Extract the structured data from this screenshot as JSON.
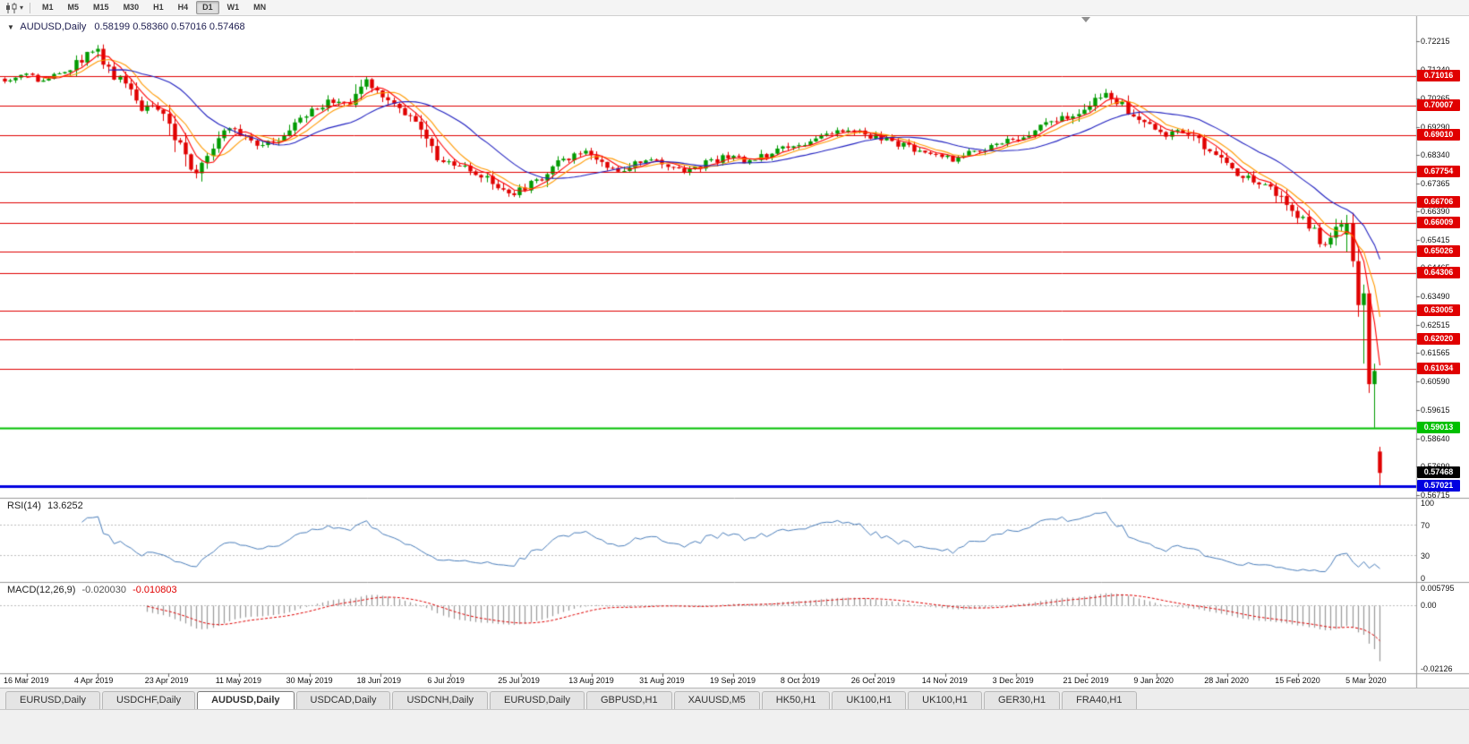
{
  "toolbar": {
    "timeframes": [
      "M1",
      "M5",
      "M15",
      "M30",
      "H1",
      "H4",
      "D1",
      "W1",
      "MN"
    ],
    "active_timeframe": "D1"
  },
  "chart": {
    "title": "AUDUSD,Daily",
    "ohlc": "0.58199 0.58360 0.57016 0.57468",
    "collapse_glyph": "▼"
  },
  "chart_data": {
    "type": "candlestick",
    "symbol": "AUDUSD",
    "period": "Daily",
    "open": "0.58199",
    "high": "0.58360",
    "low": "0.57016",
    "close": "0.57468",
    "current_price": "0.57468",
    "price_max": 0.727,
    "price_min": 0.5665,
    "num_candles": 252,
    "y_ticks": [
      "0.72215",
      "0.71240",
      "0.70265",
      "0.69290",
      "0.68340",
      "0.67365",
      "0.66390",
      "0.65415",
      "0.64465",
      "0.63490",
      "0.62515",
      "0.61565",
      "0.60590",
      "0.59615",
      "0.58640",
      "0.57690",
      "0.56715"
    ],
    "x_dates": [
      "16 Mar 2019",
      "4 Apr 2019",
      "23 Apr 2019",
      "11 May 2019",
      "30 May 2019",
      "18 Jun 2019",
      "6 Jul 2019",
      "25 Jul 2019",
      "13 Aug 2019",
      "31 Aug 2019",
      "19 Sep 2019",
      "8 Oct 2019",
      "26 Oct 2019",
      "14 Nov 2019",
      "3 Dec 2019",
      "21 Dec 2019",
      "9 Jan 2020",
      "28 Jan 2020",
      "15 Feb 2020",
      "5 Mar 2020"
    ],
    "hlines": [
      {
        "value": "0.71016",
        "color": "#e00000",
        "width": 1
      },
      {
        "value": "0.70007",
        "color": "#e00000",
        "width": 1
      },
      {
        "value": "0.69010",
        "color": "#e00000",
        "width": 1
      },
      {
        "value": "0.67754",
        "color": "#e00000",
        "width": 1
      },
      {
        "value": "0.66706",
        "color": "#e00000",
        "width": 1
      },
      {
        "value": "0.66009",
        "color": "#e00000",
        "width": 1
      },
      {
        "value": "0.65026",
        "color": "#e00000",
        "width": 1
      },
      {
        "value": "0.64306",
        "color": "#e00000",
        "width": 1
      },
      {
        "value": "0.63005",
        "color": "#e00000",
        "width": 1
      },
      {
        "value": "0.62020",
        "color": "#e00000",
        "width": 1
      },
      {
        "value": "0.61034",
        "color": "#e00000",
        "width": 1
      },
      {
        "value": "0.59013",
        "color": "#00c000",
        "width": 2
      },
      {
        "value": "0.57021",
        "color": "#0000e0",
        "width": 3
      }
    ],
    "price_path": [
      [
        0.0,
        0.7093
      ],
      [
        0.013,
        0.7105
      ],
      [
        0.028,
        0.7087
      ],
      [
        0.045,
        0.7111
      ],
      [
        0.058,
        0.717
      ],
      [
        0.066,
        0.7191
      ],
      [
        0.075,
        0.7142
      ],
      [
        0.088,
        0.7056
      ],
      [
        0.1,
        0.6995
      ],
      [
        0.108,
        0.7019
      ],
      [
        0.118,
        0.6949
      ],
      [
        0.128,
        0.6842
      ],
      [
        0.136,
        0.6766
      ],
      [
        0.145,
        0.6827
      ],
      [
        0.155,
        0.6903
      ],
      [
        0.163,
        0.6934
      ],
      [
        0.175,
        0.6903
      ],
      [
        0.185,
        0.6857
      ],
      [
        0.195,
        0.6879
      ],
      [
        0.205,
        0.6919
      ],
      [
        0.215,
        0.6949
      ],
      [
        0.228,
        0.6995
      ],
      [
        0.24,
        0.7019
      ],
      [
        0.252,
        0.7001
      ],
      [
        0.262,
        0.7087
      ],
      [
        0.27,
        0.7056
      ],
      [
        0.28,
        0.7019
      ],
      [
        0.292,
        0.698
      ],
      [
        0.305,
        0.6903
      ],
      [
        0.315,
        0.6827
      ],
      [
        0.325,
        0.6796
      ],
      [
        0.34,
        0.6781
      ],
      [
        0.355,
        0.6735
      ],
      [
        0.368,
        0.6695
      ],
      [
        0.38,
        0.6726
      ],
      [
        0.392,
        0.6757
      ],
      [
        0.405,
        0.6812
      ],
      [
        0.418,
        0.6848
      ],
      [
        0.43,
        0.6818
      ],
      [
        0.445,
        0.6781
      ],
      [
        0.458,
        0.6802
      ],
      [
        0.47,
        0.6827
      ],
      [
        0.482,
        0.6796
      ],
      [
        0.495,
        0.6775
      ],
      [
        0.51,
        0.6802
      ],
      [
        0.525,
        0.6827
      ],
      [
        0.54,
        0.6806
      ],
      [
        0.555,
        0.6836
      ],
      [
        0.57,
        0.6857
      ],
      [
        0.585,
        0.6879
      ],
      [
        0.6,
        0.6903
      ],
      [
        0.615,
        0.6919
      ],
      [
        0.63,
        0.6897
      ],
      [
        0.645,
        0.6879
      ],
      [
        0.66,
        0.6857
      ],
      [
        0.675,
        0.6836
      ],
      [
        0.69,
        0.6818
      ],
      [
        0.705,
        0.6842
      ],
      [
        0.72,
        0.6866
      ],
      [
        0.735,
        0.6888
      ],
      [
        0.75,
        0.6919
      ],
      [
        0.765,
        0.6949
      ],
      [
        0.78,
        0.698
      ],
      [
        0.79,
        0.7019
      ],
      [
        0.8,
        0.7047
      ],
      [
        0.81,
        0.701
      ],
      [
        0.82,
        0.6971
      ],
      [
        0.832,
        0.6928
      ],
      [
        0.845,
        0.6903
      ],
      [
        0.855,
        0.6919
      ],
      [
        0.868,
        0.6879
      ],
      [
        0.88,
        0.6836
      ],
      [
        0.892,
        0.6787
      ],
      [
        0.905,
        0.675
      ],
      [
        0.915,
        0.6726
      ],
      [
        0.925,
        0.6705
      ],
      [
        0.935,
        0.6653
      ],
      [
        0.945,
        0.6604
      ],
      [
        0.955,
        0.6561
      ],
      [
        0.962,
        0.6506
      ],
      [
        0.968,
        0.6561
      ],
      [
        0.974,
        0.6628
      ],
      [
        0.98,
        0.6543
      ],
      [
        0.985,
        0.6414
      ],
      [
        0.989,
        0.6277
      ],
      [
        0.992,
        0.6155
      ],
      [
        0.995,
        0.6048
      ],
      [
        0.998,
        0.5925
      ],
      [
        1.0,
        0.5772
      ]
    ],
    "last_candles": [
      [
        0.6561,
        0.6628,
        0.65,
        0.66
      ],
      [
        0.66,
        0.6635,
        0.645,
        0.647
      ],
      [
        0.647,
        0.652,
        0.628,
        0.632
      ],
      [
        0.632,
        0.639,
        0.612,
        0.636
      ],
      [
        0.636,
        0.637,
        0.602,
        0.605
      ],
      [
        0.605,
        0.612,
        0.5901,
        0.6095
      ],
      [
        0.58199,
        0.5836,
        0.57016,
        0.57468
      ]
    ],
    "colors": {
      "up": "#009a00",
      "down": "#e00000",
      "ma_fast": "#ff0000",
      "ma_mid": "#ff9900",
      "ma_slow": "#2020c0",
      "rsi": "#4a7ebb",
      "macd_hist": "#9a9a9a",
      "macd_signal": "#e00000",
      "current_badge": "#000000"
    },
    "rsi": {
      "label": "RSI(14)",
      "value": "13.6252",
      "axis": [
        "100",
        "70",
        "30",
        "0"
      ],
      "levels": [
        70,
        30
      ]
    },
    "macd": {
      "label": "MACD(12,26,9)",
      "value_main": "-0.020030",
      "value_signal": "-0.010803",
      "axis": [
        "0.005795",
        "0.00",
        "-0.02126"
      ]
    }
  },
  "tabs": {
    "items": [
      "EURUSD,Daily",
      "USDCHF,Daily",
      "AUDUSD,Daily",
      "USDCAD,Daily",
      "USDCNH,Daily",
      "EURUSD,Daily",
      "GBPUSD,H1",
      "XAUUSD,M5",
      "HK50,H1",
      "UK100,H1",
      "UK100,H1",
      "GER30,H1",
      "FRA40,H1"
    ],
    "active_index": 2
  }
}
